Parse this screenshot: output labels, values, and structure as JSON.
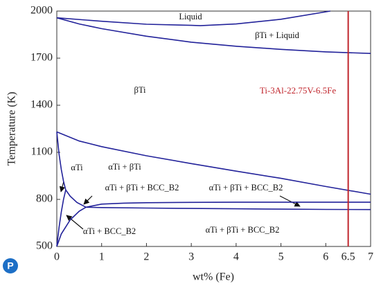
{
  "chart_data": {
    "type": "line",
    "xlabel": "wt% (Fe)",
    "ylabel": "Temperature (K)",
    "xlim": [
      0,
      7
    ],
    "ylim": [
      500,
      2000
    ],
    "xticks": [
      0,
      1,
      2,
      3,
      4,
      5,
      6,
      6.5,
      7
    ],
    "yticks": [
      500,
      800,
      1100,
      1400,
      1700,
      2000
    ],
    "series": [
      {
        "color": "#22229a",
        "x": [
          0,
          1,
          2,
          3,
          3.2,
          4,
          5,
          6.1
        ],
        "values": [
          1957,
          1935,
          1916,
          1909,
          1907,
          1918,
          1948,
          2000
        ]
      },
      {
        "color": "#22229a",
        "x": [
          0,
          0.5,
          1,
          2,
          3,
          4,
          5,
          6,
          7
        ],
        "values": [
          1957,
          1918,
          1888,
          1840,
          1802,
          1776,
          1756,
          1740,
          1730
        ]
      },
      {
        "color": "#22229a",
        "x": [
          0,
          0.5,
          1,
          2,
          3,
          4,
          5,
          6,
          7
        ],
        "values": [
          1230,
          1172,
          1136,
          1078,
          1028,
          980,
          934,
          882,
          833
        ]
      },
      {
        "color": "#22229a",
        "x": [
          0,
          0.05,
          0.1,
          0.15,
          0.2
        ],
        "values": [
          1230,
          1090,
          990,
          915,
          860
        ]
      },
      {
        "color": "#22229a",
        "x": [
          0,
          0.05,
          0.1,
          0.15,
          0.2
        ],
        "values": [
          500,
          620,
          720,
          800,
          860
        ]
      },
      {
        "color": "#22229a",
        "x": [
          0.2,
          0.3,
          0.45,
          0.65
        ],
        "values": [
          860,
          820,
          780,
          750
        ]
      },
      {
        "color": "#22229a",
        "x": [
          0,
          0.1,
          0.3,
          0.5,
          0.65
        ],
        "values": [
          500,
          580,
          670,
          725,
          750
        ]
      },
      {
        "color": "#22229a",
        "x": [
          0.65,
          1,
          1.5,
          2,
          3,
          4,
          5,
          6,
          7
        ],
        "values": [
          750,
          770,
          776,
          779,
          781,
          782,
          782,
          782,
          782
        ]
      },
      {
        "color": "#22229a",
        "x": [
          0.65,
          1,
          2,
          3,
          4,
          5,
          6,
          7
        ],
        "values": [
          750,
          748,
          745,
          742,
          740,
          738,
          736,
          735
        ]
      }
    ],
    "marker": {
      "x": 6.5,
      "label": "Ti-3Al-22.75V-6.5Fe",
      "color": "#c0242b"
    },
    "annotations": [
      "Liquid",
      "βTi + Liquid",
      "βTi",
      "αTi",
      "αTi + βTi",
      "αTi + βTi + BCC_B2",
      "αTi + βTi + BCC_B2",
      "αTi + βTi + BCC_B2",
      "αTi + BCC_B2"
    ],
    "logo": "P"
  }
}
